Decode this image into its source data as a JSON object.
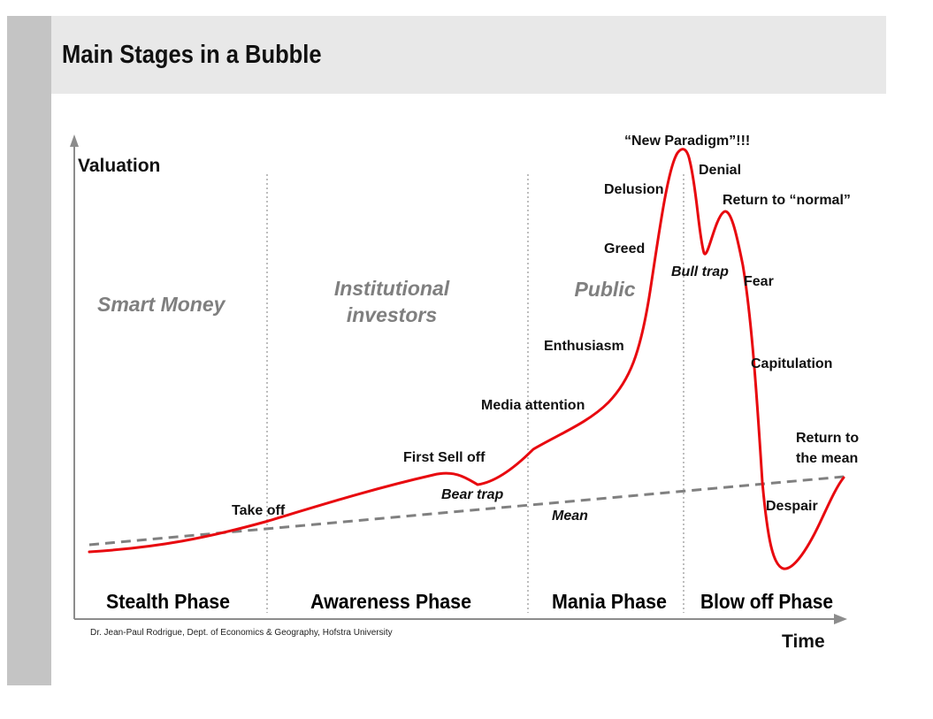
{
  "title": "Main Stages in a Bubble",
  "axes": {
    "y_label": "Valuation",
    "x_label": "Time"
  },
  "participants": {
    "smart_money": "Smart Money",
    "institutional_line1": "Institutional",
    "institutional_line2": "investors",
    "public": "Public"
  },
  "phases": {
    "stealth": "Stealth Phase",
    "awareness": "Awareness Phase",
    "mania": "Mania Phase",
    "blowoff": "Blow off Phase"
  },
  "annotations": {
    "take_off": "Take off",
    "first_sell_off": "First Sell off",
    "bear_trap": "Bear trap",
    "mean": "Mean",
    "media_attention": "Media attention",
    "enthusiasm": "Enthusiasm",
    "greed": "Greed",
    "delusion": "Delusion",
    "new_paradigm": "“New Paradigm”!!!",
    "denial": "Denial",
    "return_to_normal": "Return to “normal”",
    "bull_trap": "Bull trap",
    "fear": "Fear",
    "capitulation": "Capitulation",
    "despair": "Despair",
    "return_to_mean_line1": "Return to",
    "return_to_mean_line2": "the mean"
  },
  "credit": "Dr. Jean-Paul Rodrigue, Dept. of Economics & Geography, Hofstra University",
  "colors": {
    "curve": "#e8090f",
    "mean_line": "#808080",
    "participant_text": "#7f7f7f",
    "header_band": "#e8e8e8",
    "side_bar": "#c4c4c4"
  }
}
